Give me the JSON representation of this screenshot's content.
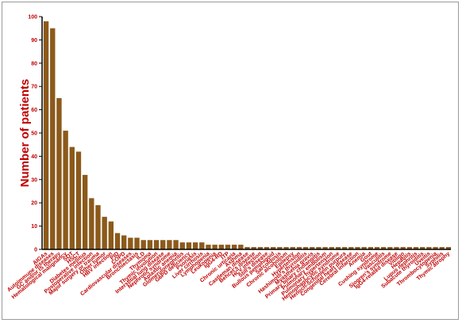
{
  "chart_data": {
    "type": "bar",
    "title": "",
    "xlabel": "",
    "ylabel": "Number of patients",
    "ylim": [
      0,
      100
    ],
    "yticks": [
      0,
      10,
      20,
      30,
      40,
      50,
      60,
      70,
      80,
      90,
      100
    ],
    "grid": false,
    "bar_color": "#8b5a1b",
    "axis_color": "#000000",
    "label_color": "#c00000",
    "categories": [
      "AIGAs",
      "Autoimmune diseases",
      "GC and/or IS therapy",
      "Hematological malignancy",
      "SOT",
      "HSCT",
      "Diabetes mellitus",
      "Postoperative infection",
      "Major surgery or trauma",
      "Other tumor",
      "HBV infection",
      "PID",
      "COPD",
      "Cardiovascular diseases",
      "Bronchiectasis",
      "ILD",
      "Thymoma",
      "Thymic involution",
      "Interstitial lung disease",
      "Nephrotic syndrome",
      "Aplastic anemia",
      "Glomerulonephritis",
      "G6PD deficiency",
      "Psoriasis",
      "Liver cirrhosis",
      "Lymphopenia",
      "Leukopenia",
      "IgG4-RD",
      "ITP",
      "Chronic urticaria",
      "Asthma",
      "Castleman disease",
      "Behcet's disease",
      "HCV infection",
      "Still's disease",
      "Bullous pemphigoid",
      "Sarcoidosis",
      "Chronic alcoholism",
      "Epilepsy",
      "Hypertension",
      "Hashimoto's thyroiditis",
      "Myasthenia gravis",
      "Primary biliary cholangitis",
      "Pulmonary embolism",
      "Pulmonary hypertension",
      "Hemophagocytic syndrome",
      "Henoch-Schonlein purpura",
      "Congenital heart disease",
      "Cerebral infarction",
      "Anemia",
      "Gout",
      "Cushing syndrome",
      "Vasculitis",
      "Sjogren's syndrome",
      "IgG4-related disease",
      "Vitiligo",
      "Hepatitis",
      "Lupus nephritis",
      "Subacute thyroiditis",
      "Uveitis",
      "Thrombocytopenia",
      "Syphilis",
      "Thymic atrophy"
    ],
    "values": [
      98,
      95,
      65,
      51,
      44,
      42,
      32,
      22,
      19,
      14,
      12,
      7,
      6,
      5,
      5,
      4,
      4,
      4,
      4,
      4,
      4,
      3,
      3,
      3,
      3,
      2,
      2,
      2,
      2,
      2,
      2,
      1,
      1,
      1,
      1,
      1,
      1,
      1,
      1,
      1,
      1,
      1,
      1,
      1,
      1,
      1,
      1,
      1,
      1,
      1,
      1,
      1,
      1,
      1,
      1,
      1,
      1,
      1,
      1,
      1,
      1,
      1,
      1
    ]
  }
}
